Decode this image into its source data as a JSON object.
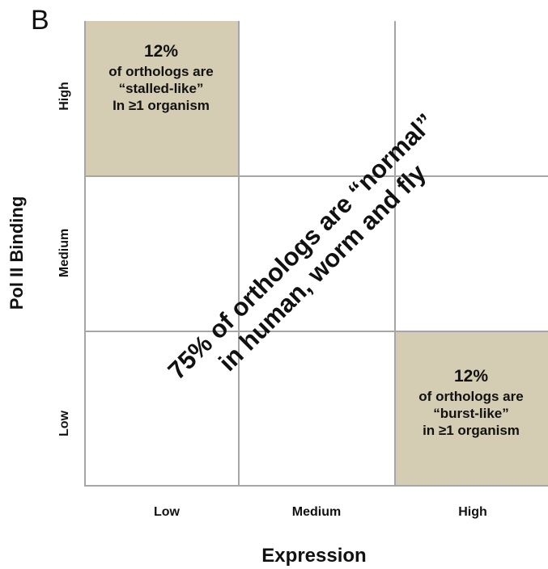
{
  "panel_label": "B",
  "y_axis_title": "Pol II  Binding",
  "x_axis_title": "Expression",
  "y_levels": [
    "High",
    "Medium",
    "Low"
  ],
  "x_levels": [
    "Low",
    "Medium",
    "High"
  ],
  "top_left_cell": {
    "percent": "12%",
    "line1": "of orthologs are",
    "line2": "“stalled-like”",
    "line3": "In ≥1 organism"
  },
  "bottom_right_cell": {
    "percent": "12%",
    "line1": "of orthologs are",
    "line2": "“burst-like”",
    "line3": "in ≥1 organism"
  },
  "diagonal_text": {
    "line1": "75% of orthologs are “normal”",
    "line2": "in human, worm and fly"
  },
  "colors": {
    "shaded_cell": "#d4cdb3",
    "grid_lines": "#a6a6a6"
  }
}
